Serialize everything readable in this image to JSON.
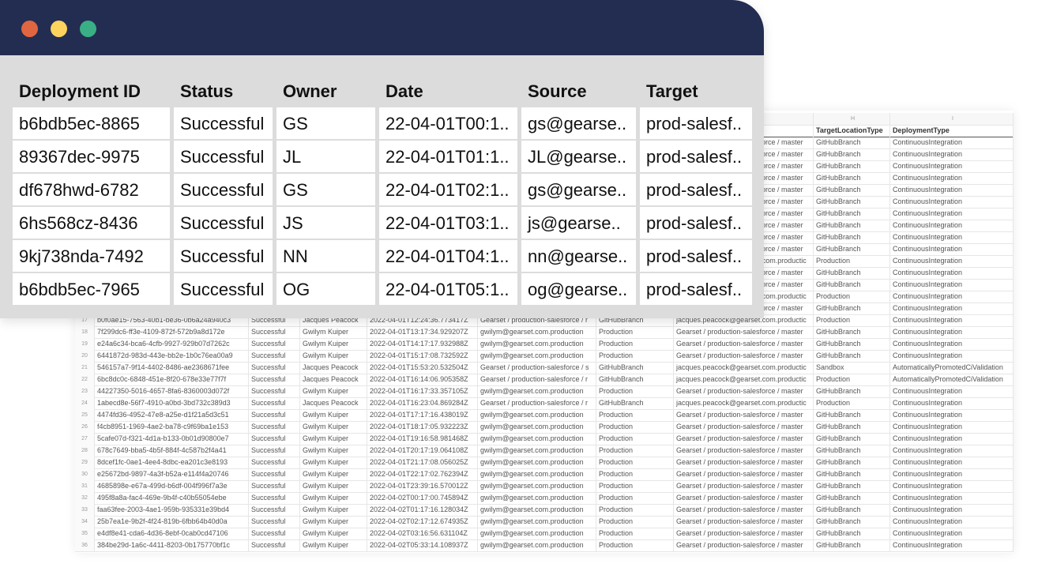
{
  "window": {
    "dots": {
      "close": "#e06641",
      "minimize": "#fdd35d",
      "maximize": "#3aaf85"
    },
    "columns": [
      "Deployment ID",
      "Status",
      "Owner",
      "Date",
      "Source",
      "Target"
    ],
    "rows": [
      [
        "b6bdb5ec-8865",
        "Successful",
        "GS",
        "22-04-01T00:1..",
        "gs@gearse..",
        "prod-salesf.."
      ],
      [
        "89367dec-9975",
        "Successful",
        "JL",
        "22-04-01T01:1..",
        "JL@gearse..",
        "prod-salesf.."
      ],
      [
        "df678hwd-6782",
        "Successful",
        "GS",
        "22-04-01T02:1..",
        "gs@gearse..",
        "prod-salesf.."
      ],
      [
        "6hs568cz-8436",
        "Successful",
        "JS",
        "22-04-01T03:1..",
        "js@gearse..",
        "prod-salesf.."
      ],
      [
        "9kj738nda-7492",
        "Successful",
        "NN",
        "22-04-01T04:1..",
        "nn@gearse..",
        "prod-salesf.."
      ],
      [
        "b6bdb5ec-7965",
        "Successful",
        "OG",
        "22-04-01T05:1..",
        "og@gearse..",
        "prod-salesf.."
      ]
    ]
  },
  "sheet": {
    "column_letters": {
      "H": "H",
      "I": "I"
    },
    "headers": {
      "H": "TargetLocationType",
      "I": "DeploymentType"
    },
    "top_rows": [
      [
        "Gearset / production-salesforce / master",
        "GitHubBranch",
        "ContinuousIntegration"
      ],
      [
        "Gearset / production-salesforce / master",
        "GitHubBranch",
        "ContinuousIntegration"
      ],
      [
        "Gearset / production-salesforce / master",
        "GitHubBranch",
        "ContinuousIntegration"
      ],
      [
        "Gearset / production-salesforce / master",
        "GitHubBranch",
        "ContinuousIntegration"
      ],
      [
        "Gearset / production-salesforce / master",
        "GitHubBranch",
        "ContinuousIntegration"
      ],
      [
        "Gearset / production-salesforce / master",
        "GitHubBranch",
        "ContinuousIntegration"
      ],
      [
        "Gearset / production-salesforce / master",
        "GitHubBranch",
        "ContinuousIntegration"
      ],
      [
        "Gearset / production-salesforce / master",
        "GitHubBranch",
        "ContinuousIntegration"
      ],
      [
        "Gearset / production-salesforce / master",
        "GitHubBranch",
        "ContinuousIntegration"
      ],
      [
        "Gearset / production-salesforce / master",
        "GitHubBranch",
        "ContinuousIntegration"
      ],
      [
        "jacques.peacock@gearset.com.productic",
        "Production",
        "ContinuousIntegration"
      ],
      [
        "Gearset / production-salesforce / master",
        "GitHubBranch",
        "ContinuousIntegration"
      ],
      [
        "Gearset / production-salesforce / master",
        "GitHubBranch",
        "ContinuousIntegration"
      ],
      [
        "jacques.peacock@gearset.com.productic",
        "Production",
        "ContinuousIntegration"
      ],
      [
        "Gearset / production-salesforce / master",
        "GitHubBranch",
        "ContinuousIntegration"
      ]
    ],
    "rows": [
      [
        "17",
        "b0f0ae15-7563-40b1-be36-0b6a24a940c3",
        "Successful",
        "Jacques Peacock",
        "2022-04-01T12:24:36.773417Z",
        "Gearset / production-salesforce / r",
        "GitHubBranch",
        "jacques.peacock@gearset.com.productic",
        "Production",
        "ContinuousIntegration"
      ],
      [
        "18",
        "7f299dc6-ff3e-4109-872f-572b9a8d172e",
        "Successful",
        "Gwilym Kuiper",
        "2022-04-01T13:17:34.929207Z",
        "gwilym@gearset.com.production",
        "Production",
        "Gearset / production-salesforce / master",
        "GitHubBranch",
        "ContinuousIntegration"
      ],
      [
        "19",
        "e24a6c34-bca6-4cfb-9927-929b07d7262c",
        "Successful",
        "Gwilym Kuiper",
        "2022-04-01T14:17:17.932988Z",
        "gwilym@gearset.com.production",
        "Production",
        "Gearset / production-salesforce / master",
        "GitHubBranch",
        "ContinuousIntegration"
      ],
      [
        "20",
        "6441872d-983d-443e-bb2e-1b0c76ea00a9",
        "Successful",
        "Gwilym Kuiper",
        "2022-04-01T15:17:08.732592Z",
        "gwilym@gearset.com.production",
        "Production",
        "Gearset / production-salesforce / master",
        "GitHubBranch",
        "ContinuousIntegration"
      ],
      [
        "21",
        "546157a7-9f14-4402-8486-ae2368671fee",
        "Successful",
        "Jacques Peacock",
        "2022-04-01T15:53:20.532504Z",
        "Gearset / production-salesforce / s",
        "GitHubBranch",
        "jacques.peacock@gearset.com.productic",
        "Sandbox",
        "AutomaticallyPromotedCiValidation"
      ],
      [
        "22",
        "6bc8dc0c-6848-451e-8f20-678e33e77f7f",
        "Successful",
        "Jacques Peacock",
        "2022-04-01T16:14:06.905358Z",
        "Gearset / production-salesforce / r",
        "GitHubBranch",
        "jacques.peacock@gearset.com.productic",
        "Production",
        "AutomaticallyPromotedCiValidation"
      ],
      [
        "23",
        "44227350-5016-4657-8fa6-8360003d072f",
        "Successful",
        "Gwilym Kuiper",
        "2022-04-01T16:17:33.357105Z",
        "gwilym@gearset.com.production",
        "Production",
        "Gearset / production-salesforce / master",
        "GitHubBranch",
        "ContinuousIntegration"
      ],
      [
        "24",
        "1abecd8e-56f7-4910-a0bd-3bd732c389d3",
        "Successful",
        "Jacques Peacock",
        "2022-04-01T16:23:04.869284Z",
        "Gearset / production-salesforce / r",
        "GitHubBranch",
        "jacques.peacock@gearset.com.productic",
        "Production",
        "ContinuousIntegration"
      ],
      [
        "25",
        "4474fd36-4952-47e8-a25e-d1f21a5d3c51",
        "Successful",
        "Gwilym Kuiper",
        "2022-04-01T17:17:16.438019Z",
        "gwilym@gearset.com.production",
        "Production",
        "Gearset / production-salesforce / master",
        "GitHubBranch",
        "ContinuousIntegration"
      ],
      [
        "26",
        "f4cb8951-1969-4ae2-ba78-c9f69ba1e153",
        "Successful",
        "Gwilym Kuiper",
        "2022-04-01T18:17:05.932223Z",
        "gwilym@gearset.com.production",
        "Production",
        "Gearset / production-salesforce / master",
        "GitHubBranch",
        "ContinuousIntegration"
      ],
      [
        "27",
        "5cafe07d-f321-4d1a-b133-0b01d90800e7",
        "Successful",
        "Gwilym Kuiper",
        "2022-04-01T19:16:58.981468Z",
        "gwilym@gearset.com.production",
        "Production",
        "Gearset / production-salesforce / master",
        "GitHubBranch",
        "ContinuousIntegration"
      ],
      [
        "28",
        "678c7649-bba5-4b5f-884f-4c587b2f4a41",
        "Successful",
        "Gwilym Kuiper",
        "2022-04-01T20:17:19.064108Z",
        "gwilym@gearset.com.production",
        "Production",
        "Gearset / production-salesforce / master",
        "GitHubBranch",
        "ContinuousIntegration"
      ],
      [
        "29",
        "8dcef1fc-0ae1-4ee4-8dbc-ea201c3e8193",
        "Successful",
        "Gwilym Kuiper",
        "2022-04-01T21:17:08.056025Z",
        "gwilym@gearset.com.production",
        "Production",
        "Gearset / production-salesforce / master",
        "GitHubBranch",
        "ContinuousIntegration"
      ],
      [
        "30",
        "e25672bd-9897-4a3f-b52a-e114f4a20746",
        "Successful",
        "Gwilym Kuiper",
        "2022-04-01T22:17:02.762394Z",
        "gwilym@gearset.com.production",
        "Production",
        "Gearset / production-salesforce / master",
        "GitHubBranch",
        "ContinuousIntegration"
      ],
      [
        "31",
        "4685898e-e67a-499d-b6df-004f996f7a3e",
        "Successful",
        "Gwilym Kuiper",
        "2022-04-01T23:39:16.570012Z",
        "gwilym@gearset.com.production",
        "Production",
        "Gearset / production-salesforce / master",
        "GitHubBranch",
        "ContinuousIntegration"
      ],
      [
        "32",
        "495f8a8a-fac4-469e-9b4f-c40b55054ebe",
        "Successful",
        "Gwilym Kuiper",
        "2022-04-02T00:17:00.745894Z",
        "gwilym@gearset.com.production",
        "Production",
        "Gearset / production-salesforce / master",
        "GitHubBranch",
        "ContinuousIntegration"
      ],
      [
        "33",
        "faa63fee-2003-4ae1-959b-935331e39bd4",
        "Successful",
        "Gwilym Kuiper",
        "2022-04-02T01:17:16.128034Z",
        "gwilym@gearset.com.production",
        "Production",
        "Gearset / production-salesforce / master",
        "GitHubBranch",
        "ContinuousIntegration"
      ],
      [
        "34",
        "25b7ea1e-9b2f-4f24-819b-6fbb64b40d0a",
        "Successful",
        "Gwilym Kuiper",
        "2022-04-02T02:17:12.674935Z",
        "gwilym@gearset.com.production",
        "Production",
        "Gearset / production-salesforce / master",
        "GitHubBranch",
        "ContinuousIntegration"
      ],
      [
        "35",
        "e4df8e41-cda6-4d36-8ebf-0cab0cd47106",
        "Successful",
        "Gwilym Kuiper",
        "2022-04-02T03:16:56.631104Z",
        "gwilym@gearset.com.production",
        "Production",
        "Gearset / production-salesforce / master",
        "GitHubBranch",
        "ContinuousIntegration"
      ],
      [
        "36",
        "384be29d-1a6c-4411-8203-0b175770bf1c",
        "Successful",
        "Gwilym Kuiper",
        "2022-04-02T05:33:14.108937Z",
        "gwilym@gearset.com.production",
        "Production",
        "Gearset / production-salesforce / master",
        "GitHubBranch",
        "ContinuousIntegration"
      ]
    ]
  }
}
